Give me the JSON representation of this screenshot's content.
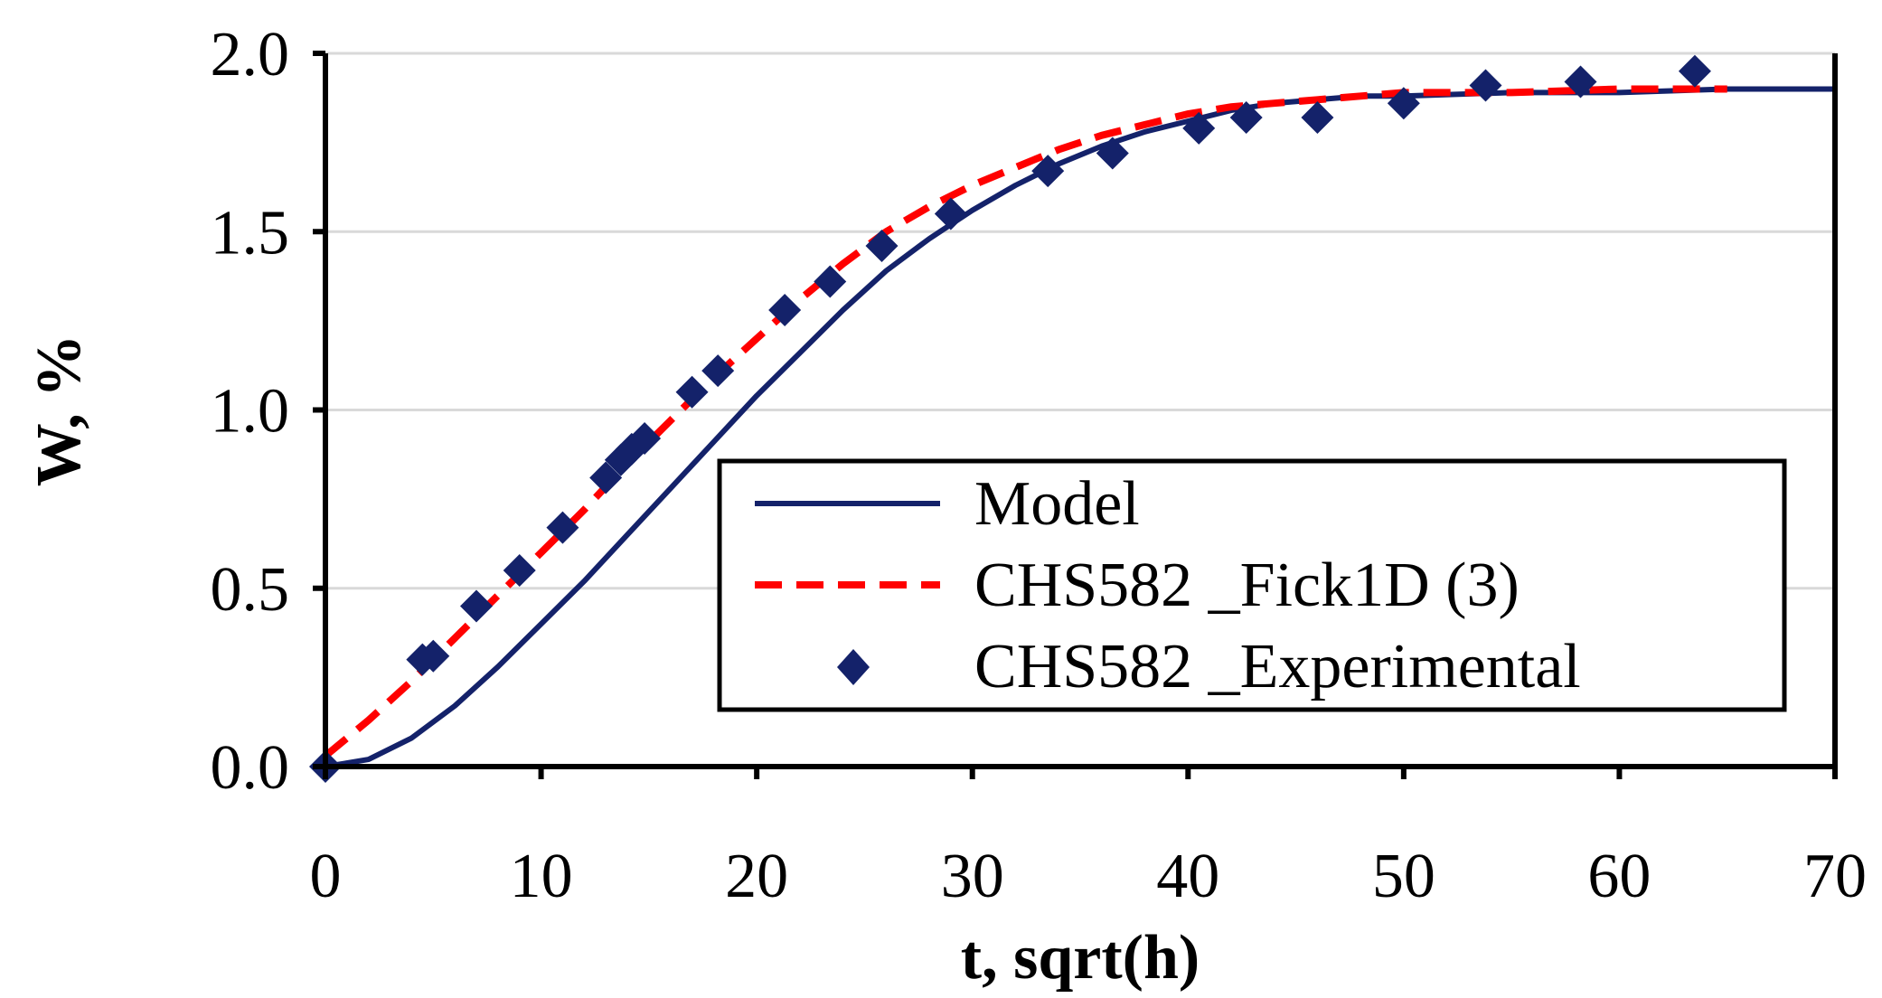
{
  "chart_data": {
    "type": "line",
    "title": "",
    "xlabel": "t, sqrt(h)",
    "ylabel": "W, %",
    "xlim": [
      0,
      70
    ],
    "ylim": [
      0,
      2.0
    ],
    "x_ticks": [
      "0",
      "10",
      "20",
      "30",
      "40",
      "50",
      "60",
      "70"
    ],
    "y_ticks": [
      "0.0",
      "0.5",
      "1.0",
      "1.5",
      "2.0"
    ],
    "grid": "horizontal",
    "legend_position": "center-right",
    "colors": {
      "model": "#14226a",
      "fick": "#ff0000",
      "experimental": "#14226a",
      "grid": "#d9d9d9"
    },
    "series": [
      {
        "name": "Model",
        "style": "solid-line",
        "x": [
          0,
          2,
          4,
          6,
          8,
          10,
          12,
          14,
          16,
          18,
          20,
          22,
          24,
          26,
          28,
          30,
          32,
          34,
          36,
          38,
          40,
          42,
          44,
          46,
          48,
          50,
          55,
          60,
          65,
          70
        ],
        "y": [
          0,
          0.02,
          0.08,
          0.17,
          0.28,
          0.4,
          0.52,
          0.65,
          0.78,
          0.91,
          1.04,
          1.16,
          1.28,
          1.39,
          1.48,
          1.56,
          1.63,
          1.69,
          1.74,
          1.78,
          1.81,
          1.84,
          1.86,
          1.87,
          1.88,
          1.88,
          1.89,
          1.89,
          1.9,
          1.9
        ]
      },
      {
        "name": "CHS582 _Fick1D (3)",
        "style": "dashed-line",
        "x": [
          0,
          2,
          4,
          6,
          8,
          10,
          12,
          14,
          16,
          18,
          20,
          22,
          24,
          26,
          28,
          30,
          32,
          34,
          36,
          38,
          40,
          42,
          44,
          46,
          48,
          50,
          55,
          60,
          65
        ],
        "y": [
          0.03,
          0.13,
          0.24,
          0.36,
          0.48,
          0.6,
          0.72,
          0.85,
          0.97,
          1.09,
          1.2,
          1.31,
          1.41,
          1.5,
          1.57,
          1.63,
          1.68,
          1.73,
          1.77,
          1.8,
          1.83,
          1.85,
          1.86,
          1.87,
          1.88,
          1.89,
          1.89,
          1.9,
          1.9
        ]
      },
      {
        "name": "CHS582 _Experimental",
        "style": "diamond-markers",
        "x": [
          0,
          4.5,
          5,
          7,
          9,
          11,
          13,
          13.7,
          14.2,
          14.8,
          17,
          18.2,
          21.3,
          23.4,
          25.8,
          29,
          33.5,
          36.5,
          40.5,
          42.7,
          46,
          50,
          53.8,
          58.2,
          63.5
        ],
        "y": [
          0,
          0.3,
          0.31,
          0.45,
          0.55,
          0.67,
          0.81,
          0.86,
          0.89,
          0.92,
          1.05,
          1.11,
          1.28,
          1.36,
          1.46,
          1.55,
          1.67,
          1.72,
          1.79,
          1.82,
          1.82,
          1.86,
          1.91,
          1.92,
          1.95
        ]
      }
    ]
  }
}
